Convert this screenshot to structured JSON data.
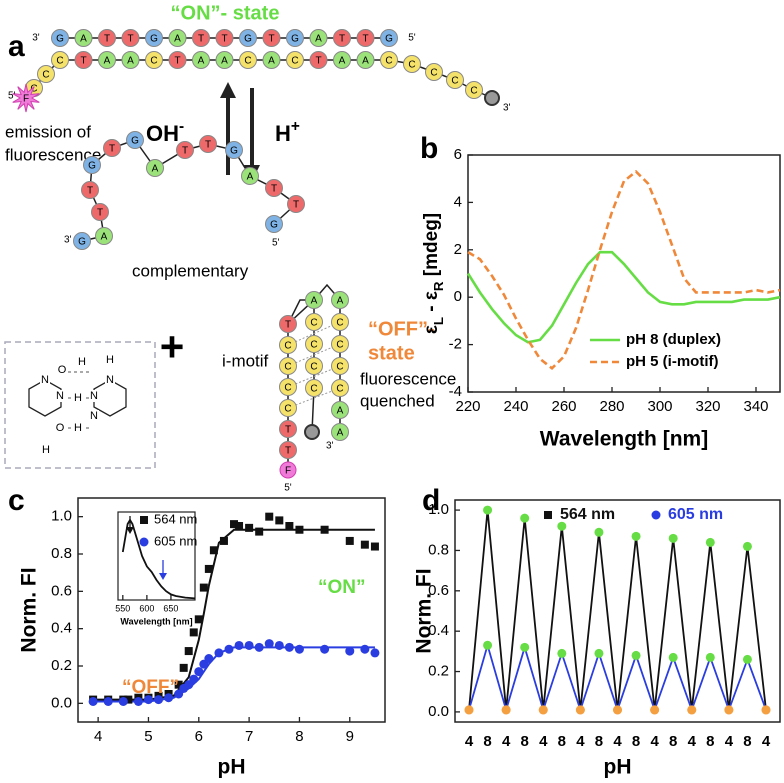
{
  "panel_a": {
    "label": "a",
    "title": "“ON”- state",
    "five_prime": "5'",
    "three_prime": "3'",
    "duplex_top": [
      "G",
      "A",
      "T",
      "T",
      "G",
      "A",
      "T",
      "T",
      "G",
      "T",
      "G",
      "A",
      "T",
      "T",
      "G"
    ],
    "duplex_bottom": [
      "C",
      "T",
      "A",
      "A",
      "C",
      "T",
      "A",
      "A",
      "C",
      "A",
      "C",
      "T",
      "A",
      "A",
      "C"
    ],
    "tail_left": [
      "C",
      "C"
    ],
    "fluorophore": "F",
    "tail_right": [
      "C",
      "C",
      "C",
      "C"
    ],
    "arrow_left": [
      "OH",
      "-"
    ],
    "arrow_right": [
      "H",
      "+"
    ],
    "emission": [
      "emission of",
      "fluorescence"
    ],
    "complementary_strand": [
      "G",
      "A",
      "T",
      "T",
      "G",
      "T",
      "G",
      "A",
      "T",
      "T",
      "G",
      "A",
      "T",
      "T",
      "G"
    ],
    "complementary_label": "complementary",
    "plus": "+",
    "imotif_label": "i-motif",
    "imotif_left": [
      "T",
      "C",
      "C",
      "C",
      "C",
      "T",
      "T"
    ],
    "imotif_middle": [
      "A",
      "C",
      "C",
      "C",
      "C"
    ],
    "imotif_right": [
      "A",
      "C",
      "C",
      "C",
      "C",
      "A",
      "A"
    ],
    "off_state": [
      "“OFF”-",
      "state"
    ],
    "quenched": [
      "fluorescence",
      "quenched"
    ],
    "base_pair_atoms": [
      "O",
      "H",
      "N",
      "H",
      "N",
      "N",
      "N",
      "H",
      "H",
      "N",
      "O",
      "H"
    ]
  },
  "chart_data": [
    {
      "type": "line",
      "panel_label": "b",
      "x": [
        220,
        225,
        230,
        235,
        240,
        245,
        250,
        255,
        260,
        265,
        270,
        275,
        280,
        285,
        290,
        295,
        300,
        305,
        310,
        315,
        320,
        325,
        330,
        335,
        340,
        345,
        350
      ],
      "series": [
        {
          "name": "pH 8 (duplex)",
          "color": "#66dd44",
          "dash": false,
          "values": [
            1.0,
            0.2,
            -0.5,
            -1.1,
            -1.6,
            -1.9,
            -1.8,
            -1.2,
            -0.3,
            0.6,
            1.4,
            1.9,
            1.9,
            1.4,
            0.8,
            0.2,
            -0.2,
            -0.3,
            -0.3,
            -0.2,
            -0.2,
            -0.2,
            -0.2,
            -0.1,
            -0.1,
            -0.1,
            0.0
          ]
        },
        {
          "name": "pH 5 (i-motif)",
          "color": "#f0883a",
          "dash": true,
          "values": [
            1.9,
            1.6,
            0.9,
            0.1,
            -0.9,
            -1.8,
            -2.6,
            -3.0,
            -2.5,
            -1.3,
            0.3,
            2.0,
            3.6,
            4.9,
            5.3,
            4.8,
            3.6,
            2.2,
            0.8,
            0.2,
            0.2,
            0.2,
            0.2,
            0.2,
            0.3,
            0.2,
            0.3
          ]
        }
      ],
      "xlim": [
        220,
        350
      ],
      "ylim": [
        -4,
        6
      ],
      "xticks": [
        220,
        240,
        260,
        280,
        300,
        320,
        340
      ],
      "yticks": [
        -4,
        -2,
        0,
        2,
        4,
        6
      ],
      "xlabel": "Wavelength [nm]",
      "ylabel_parts": [
        "ε",
        "L",
        " - ε",
        "R",
        " [mdeg]"
      ],
      "legend": "lower right"
    },
    {
      "type": "scatter",
      "panel_label": "c",
      "series": [
        {
          "name": "564 nm",
          "color": "#111111",
          "marker": "square",
          "x": [
            3.9,
            4.2,
            4.5,
            4.6,
            4.8,
            5.0,
            5.2,
            5.4,
            5.6,
            5.7,
            5.8,
            5.9,
            6.0,
            6.1,
            6.2,
            6.3,
            6.5,
            6.7,
            6.8,
            7.0,
            7.2,
            7.4,
            7.6,
            7.8,
            8.0,
            8.5,
            9.0,
            9.3,
            9.5
          ],
          "values": [
            0.02,
            0.02,
            0.02,
            0.02,
            0.03,
            0.03,
            0.04,
            0.05,
            0.1,
            0.19,
            0.28,
            0.38,
            0.45,
            0.62,
            0.72,
            0.82,
            0.87,
            0.96,
            0.95,
            0.94,
            0.92,
            1.0,
            0.98,
            0.95,
            0.93,
            0.93,
            0.87,
            0.85,
            0.84
          ]
        },
        {
          "name": "605 nm",
          "color": "#2a3de0",
          "marker": "circle",
          "x": [
            3.9,
            4.2,
            4.5,
            4.8,
            5.0,
            5.2,
            5.4,
            5.6,
            5.7,
            5.8,
            5.9,
            6.0,
            6.1,
            6.2,
            6.4,
            6.6,
            6.8,
            7.0,
            7.2,
            7.4,
            7.6,
            7.8,
            8.0,
            8.5,
            9.0,
            9.3,
            9.5
          ],
          "values": [
            0.01,
            0.01,
            0.01,
            0.01,
            0.02,
            0.02,
            0.03,
            0.05,
            0.08,
            0.1,
            0.13,
            0.17,
            0.21,
            0.24,
            0.27,
            0.29,
            0.31,
            0.31,
            0.3,
            0.32,
            0.31,
            0.3,
            0.29,
            0.29,
            0.28,
            0.29,
            0.27
          ]
        }
      ],
      "fit_lines": [
        {
          "color": "#111111",
          "x": [
            3.9,
            4.5,
            5.0,
            5.5,
            5.8,
            6.0,
            6.1,
            6.2,
            6.4,
            6.7,
            7.0,
            8.0,
            9.5
          ],
          "values": [
            0.02,
            0.02,
            0.02,
            0.04,
            0.14,
            0.34,
            0.48,
            0.63,
            0.86,
            0.93,
            0.93,
            0.93,
            0.93
          ]
        },
        {
          "color": "#2a3de0",
          "x": [
            3.9,
            4.5,
            5.0,
            5.5,
            5.8,
            6.0,
            6.1,
            6.2,
            6.4,
            6.7,
            7.0,
            8.0,
            9.5
          ],
          "values": [
            0.01,
            0.01,
            0.01,
            0.03,
            0.08,
            0.13,
            0.17,
            0.21,
            0.27,
            0.3,
            0.3,
            0.3,
            0.3
          ]
        }
      ],
      "xlim": [
        3.6,
        9.7
      ],
      "ylim": [
        -0.1,
        1.1
      ],
      "xticks": [
        4,
        5,
        6,
        7,
        8,
        9
      ],
      "yticks": [
        {
          "value": 0,
          "label": "0.0"
        },
        {
          "value": 0.2,
          "label": "0.2"
        },
        {
          "value": 0.4,
          "label": "0.4"
        },
        {
          "value": 0.6,
          "label": "0.6"
        },
        {
          "value": 0.8,
          "label": "0.8"
        },
        {
          "value": 1,
          "label": "1.0"
        }
      ],
      "xlabel": "pH",
      "ylabel": "Norm. FI",
      "annotations": [
        {
          "text": "“ON”",
          "color": "#66dd44"
        },
        {
          "text": "“OFF”",
          "color": "#f0883a"
        }
      ],
      "inset": {
        "type": "line",
        "color": "#111111",
        "xlabel": "Wavelength [nm]",
        "x": [
          550,
          560,
          565,
          570,
          580,
          590,
          600,
          610,
          620,
          630,
          640,
          650,
          660,
          680,
          700
        ],
        "values": [
          0.6,
          0.95,
          1.0,
          0.95,
          0.75,
          0.55,
          0.42,
          0.35,
          0.25,
          0.17,
          0.11,
          0.07,
          0.05,
          0.03,
          0.02
        ],
        "xlim": [
          540,
          700
        ],
        "ylim": [
          0,
          1.1
        ],
        "xticks": [
          550,
          600,
          650
        ]
      }
    },
    {
      "type": "line",
      "panel_label": "d",
      "categories": [
        "4",
        "8",
        "4",
        "8",
        "4",
        "8",
        "4",
        "8",
        "4",
        "8",
        "4",
        "8",
        "4",
        "8",
        "4",
        "8",
        "4"
      ],
      "series": [
        {
          "name": "564 nm",
          "color": "#111111",
          "values": [
            0.01,
            1.0,
            0.01,
            0.96,
            0.01,
            0.92,
            0.01,
            0.89,
            0.01,
            0.87,
            0.01,
            0.86,
            0.01,
            0.84,
            0.01,
            0.82,
            0.01
          ]
        },
        {
          "name": "605 nm",
          "color": "#2a3de0",
          "values": [
            0.01,
            0.33,
            0.01,
            0.32,
            0.01,
            0.29,
            0.01,
            0.29,
            0.01,
            0.28,
            0.01,
            0.27,
            0.01,
            0.27,
            0.01,
            0.26,
            0.01
          ]
        }
      ],
      "marker_colors": {
        "4": "#f5a040",
        "8": "#66dd44"
      },
      "ylim": [
        -0.05,
        1.05
      ],
      "yticks": [
        {
          "value": 0,
          "label": "0.0"
        },
        {
          "value": 0.2,
          "label": "0.2"
        },
        {
          "value": 0.4,
          "label": "0.4"
        },
        {
          "value": 0.6,
          "label": "0.6"
        },
        {
          "value": 0.8,
          "label": "0.8"
        },
        {
          "value": 1,
          "label": "1.0"
        }
      ],
      "xlabel": "pH",
      "ylabel": "Norm. FI",
      "legend": "upper center"
    }
  ]
}
